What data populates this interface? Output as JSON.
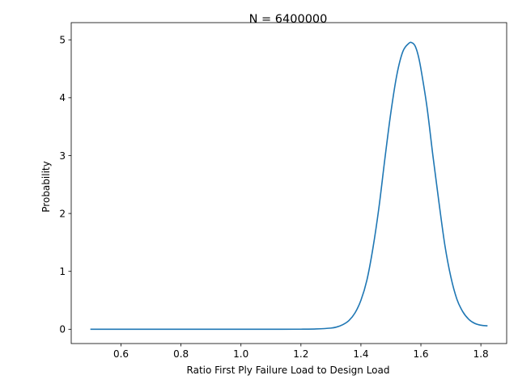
{
  "chart_data": {
    "type": "line",
    "title": "N = 6400000",
    "xlabel": "Ratio First Ply Failure Load to Design Load",
    "ylabel": "Probability",
    "xlim": [
      0.434,
      1.886
    ],
    "ylim": [
      -0.247,
      5.297
    ],
    "xticks": [
      0.6,
      0.8,
      1.0,
      1.2,
      1.4,
      1.6,
      1.8
    ],
    "xtick_labels": [
      "0.6",
      "0.8",
      "1.0",
      "1.2",
      "1.4",
      "1.6",
      "1.8"
    ],
    "yticks": [
      0,
      1,
      2,
      3,
      4,
      5
    ],
    "ytick_labels": [
      "0",
      "1",
      "2",
      "3",
      "4",
      "5"
    ],
    "grid": false,
    "series": [
      {
        "color": "#1f77b4",
        "x": [
          0.5,
          0.6,
          0.7,
          0.8,
          0.9,
          1.0,
          1.1,
          1.2,
          1.25,
          1.3,
          1.32,
          1.34,
          1.36,
          1.38,
          1.4,
          1.42,
          1.44,
          1.46,
          1.48,
          1.5,
          1.52,
          1.54,
          1.56,
          1.57,
          1.58,
          1.59,
          1.6,
          1.62,
          1.64,
          1.66,
          1.68,
          1.7,
          1.72,
          1.74,
          1.76,
          1.78,
          1.8,
          1.82
        ],
        "y": [
          0,
          0,
          0,
          0,
          0,
          0,
          0,
          0.001,
          0.005,
          0.02,
          0.04,
          0.08,
          0.15,
          0.28,
          0.5,
          0.85,
          1.4,
          2.1,
          2.95,
          3.75,
          4.4,
          4.8,
          4.94,
          4.95,
          4.9,
          4.75,
          4.5,
          3.85,
          3.0,
          2.2,
          1.45,
          0.9,
          0.52,
          0.3,
          0.17,
          0.1,
          0.07,
          0.06
        ]
      }
    ]
  }
}
